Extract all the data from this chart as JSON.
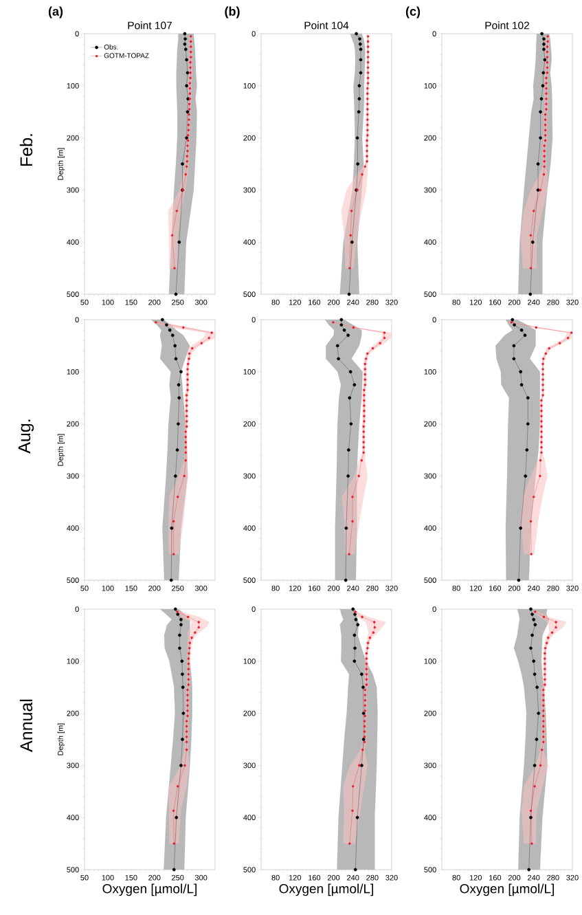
{
  "chart_data": [
    {
      "type": "line",
      "orientation": "horizontal",
      "title": "Point 107",
      "ylabel": "Depth [m]",
      "annotations": [
        "(a)",
        "Feb."
      ],
      "legend": "top left",
      "marker": "circle",
      "line_style": "solid",
      "xlim": [
        50,
        330
      ],
      "xticks": [
        50,
        100,
        150,
        200,
        250,
        300
      ],
      "ylim": [
        500,
        0
      ],
      "yticks": [
        0,
        100,
        200,
        300,
        400,
        500
      ],
      "series": [
        {
          "name": "Obs.",
          "color": "#000000",
          "x": [
            0,
            10,
            20,
            30,
            50,
            75,
            100,
            125,
            150,
            200,
            250,
            300,
            400,
            500
          ],
          "values": [
            265,
            266,
            265,
            267,
            269,
            271,
            269,
            272,
            271,
            269,
            260,
            260,
            253,
            246
          ],
          "lower": [
            251,
            251,
            250,
            249,
            248,
            247,
            247,
            248,
            249,
            249,
            246,
            242,
            236,
            231
          ],
          "upper": [
            284,
            285,
            286,
            287,
            288,
            289,
            291,
            288,
            291,
            290,
            287,
            284,
            268,
            264
          ]
        },
        {
          "name": "GOTM-TOPAZ",
          "color": "#e8202a",
          "x": [
            5,
            15,
            25,
            35,
            45,
            55,
            65,
            75,
            85,
            95,
            105,
            115,
            125,
            135,
            145,
            155,
            165,
            175,
            185,
            195,
            205,
            215,
            225,
            235,
            245,
            255,
            270,
            300,
            340,
            387,
            450
          ],
          "values": [
            278,
            278,
            278,
            278,
            278,
            277,
            277,
            277,
            277,
            276,
            276,
            276,
            276,
            275,
            275,
            274,
            274,
            273,
            273,
            272,
            272,
            271,
            271,
            270,
            270,
            269,
            267,
            261,
            248,
            238,
            243
          ],
          "lower": [
            275,
            275,
            275,
            275,
            275,
            274,
            274,
            274,
            274,
            273,
            273,
            273,
            273,
            272,
            272,
            271,
            271,
            270,
            270,
            269,
            269,
            268,
            268,
            267,
            267,
            266,
            262,
            254,
            230,
            231,
            232
          ],
          "upper": [
            281,
            281,
            281,
            281,
            281,
            280,
            280,
            280,
            280,
            279,
            279,
            279,
            279,
            278,
            278,
            277,
            277,
            276,
            276,
            275,
            275,
            274,
            274,
            273,
            273,
            272,
            271,
            266,
            257,
            250,
            249
          ]
        }
      ]
    },
    {
      "type": "line",
      "orientation": "horizontal",
      "title": "Point 104",
      "annotations": [
        "(b)"
      ],
      "marker": "circle",
      "line_style": "solid",
      "xlim": [
        50,
        320
      ],
      "xticks": [
        80,
        120,
        160,
        200,
        240,
        280,
        320
      ],
      "ylim": [
        500,
        0
      ],
      "yticks": [
        0,
        100,
        200,
        300,
        400,
        500
      ],
      "series": [
        {
          "color": "#000000",
          "x": [
            0,
            10,
            20,
            30,
            50,
            75,
            100,
            125,
            150,
            200,
            250,
            300,
            400,
            500
          ],
          "values": [
            247,
            254,
            255,
            256,
            256,
            256,
            253,
            253,
            252,
            249,
            250,
            247,
            238,
            232
          ],
          "lower": [
            234,
            238,
            242,
            244,
            245,
            244,
            241,
            242,
            243,
            244,
            242,
            239,
            220,
            213
          ],
          "upper": [
            258,
            262,
            264,
            265,
            265,
            264,
            263,
            263,
            262,
            259,
            262,
            258,
            249,
            253
          ]
        },
        {
          "color": "#e8202a",
          "x": [
            5,
            15,
            25,
            35,
            45,
            55,
            65,
            75,
            85,
            95,
            105,
            115,
            125,
            135,
            145,
            155,
            165,
            175,
            185,
            195,
            205,
            215,
            225,
            235,
            245,
            255,
            270,
            300,
            340,
            387,
            450
          ],
          "values": [
            271,
            271,
            271,
            271,
            271,
            271,
            271,
            271,
            271,
            271,
            270,
            270,
            270,
            270,
            270,
            270,
            270,
            270,
            270,
            270,
            269,
            269,
            269,
            269,
            269,
            265,
            259,
            249,
            237,
            235,
            233
          ],
          "lower": [
            269,
            269,
            269,
            269,
            269,
            269,
            269,
            269,
            269,
            269,
            268,
            268,
            268,
            268,
            268,
            268,
            268,
            268,
            268,
            268,
            267,
            267,
            267,
            267,
            267,
            262,
            248,
            227,
            216,
            222,
            225
          ],
          "upper": [
            273,
            273,
            273,
            273,
            273,
            273,
            273,
            273,
            273,
            273,
            272,
            272,
            272,
            272,
            272,
            272,
            272,
            272,
            272,
            272,
            271,
            271,
            271,
            271,
            271,
            270,
            270,
            267,
            258,
            248,
            241
          ]
        }
      ]
    },
    {
      "type": "line",
      "orientation": "horizontal",
      "title": "Point 102",
      "annotations": [
        "(c)"
      ],
      "marker": "circle",
      "line_style": "solid",
      "xlim": [
        50,
        320
      ],
      "xticks": [
        80,
        120,
        160,
        200,
        240,
        280,
        320
      ],
      "ylim": [
        500,
        0
      ],
      "yticks": [
        0,
        100,
        200,
        300,
        400,
        500
      ],
      "series": [
        {
          "color": "#000000",
          "x": [
            0,
            10,
            20,
            30,
            50,
            75,
            100,
            125,
            150,
            200,
            250,
            300,
            400,
            500
          ],
          "values": [
            257,
            261,
            261,
            261,
            263,
            260,
            259,
            256,
            254,
            254,
            249,
            249,
            238,
            233
          ],
          "lower": [
            246,
            246,
            245,
            245,
            244,
            242,
            239,
            240,
            235,
            230,
            225,
            220,
            211,
            208
          ],
          "upper": [
            272,
            274,
            275,
            276,
            277,
            274,
            277,
            278,
            278,
            279,
            275,
            268,
            258,
            258
          ]
        },
        {
          "color": "#e8202a",
          "x": [
            5,
            15,
            25,
            35,
            45,
            55,
            65,
            75,
            85,
            95,
            105,
            115,
            125,
            135,
            145,
            155,
            165,
            175,
            185,
            195,
            205,
            215,
            225,
            235,
            245,
            255,
            270,
            300,
            340,
            387,
            450
          ],
          "values": [
            269,
            269,
            268,
            268,
            268,
            268,
            268,
            268,
            266,
            266,
            266,
            266,
            266,
            266,
            266,
            264,
            264,
            264,
            264,
            264,
            264,
            262,
            262,
            262,
            262,
            262,
            261,
            254,
            240,
            234,
            234
          ],
          "lower": [
            266,
            266,
            265,
            265,
            265,
            265,
            265,
            265,
            263,
            263,
            263,
            263,
            263,
            263,
            263,
            261,
            261,
            261,
            261,
            261,
            261,
            259,
            259,
            259,
            259,
            259,
            252,
            234,
            220,
            213,
            218
          ],
          "upper": [
            272,
            272,
            271,
            271,
            271,
            271,
            271,
            271,
            269,
            269,
            269,
            269,
            269,
            269,
            269,
            267,
            267,
            267,
            267,
            267,
            267,
            265,
            265,
            265,
            265,
            265,
            268,
            268,
            258,
            246,
            246
          ]
        }
      ]
    },
    {
      "type": "line",
      "orientation": "horizontal",
      "annotations": [
        "Aug."
      ],
      "ylabel": "Depth [m]",
      "marker": "circle",
      "line_style": "solid",
      "xlim": [
        50,
        330
      ],
      "xticks": [
        50,
        100,
        150,
        200,
        250,
        300
      ],
      "ylim": [
        500,
        0
      ],
      "yticks": [
        0,
        100,
        200,
        300,
        400,
        500
      ],
      "series": [
        {
          "color": "#000000",
          "x": [
            0,
            10,
            20,
            30,
            50,
            75,
            100,
            125,
            150,
            200,
            250,
            300,
            400,
            500
          ],
          "values": [
            217,
            226,
            233,
            239,
            244,
            246,
            257,
            252,
            253,
            251,
            249,
            245,
            237,
            236
          ],
          "lower": [
            193,
            205,
            215,
            212,
            216,
            212,
            235,
            232,
            235,
            230,
            228,
            225,
            217,
            221
          ],
          "upper": [
            220,
            235,
            247,
            262,
            276,
            266,
            257,
            260,
            262,
            267,
            270,
            271,
            257,
            252
          ]
        },
        {
          "color": "#e8202a",
          "x": [
            5,
            15,
            25,
            35,
            45,
            55,
            65,
            75,
            85,
            95,
            105,
            115,
            125,
            135,
            145,
            155,
            165,
            175,
            185,
            195,
            205,
            215,
            225,
            235,
            245,
            255,
            270,
            300,
            340,
            387,
            450
          ],
          "values": [
            203,
            262,
            323,
            317,
            301,
            281,
            275,
            274,
            272,
            271,
            271,
            271,
            271,
            271,
            269,
            269,
            269,
            269,
            269,
            269,
            269,
            267,
            267,
            267,
            267,
            267,
            267,
            264,
            250,
            241,
            241
          ],
          "lower": [
            194,
            237,
            310,
            305,
            288,
            272,
            270,
            271,
            269,
            268,
            268,
            268,
            268,
            268,
            266,
            266,
            266,
            266,
            266,
            266,
            266,
            264,
            264,
            264,
            264,
            264,
            264,
            252,
            232,
            230,
            231
          ],
          "upper": [
            212,
            276,
            330,
            330,
            305,
            290,
            280,
            277,
            275,
            274,
            274,
            274,
            274,
            274,
            272,
            272,
            272,
            272,
            272,
            272,
            272,
            270,
            270,
            270,
            270,
            270,
            270,
            272,
            267,
            262,
            252
          ]
        }
      ]
    },
    {
      "type": "line",
      "orientation": "horizontal",
      "marker": "circle",
      "line_style": "solid",
      "xlim": [
        50,
        320
      ],
      "xticks": [
        80,
        120,
        160,
        200,
        240,
        280,
        320
      ],
      "ylim": [
        500,
        0
      ],
      "yticks": [
        0,
        100,
        200,
        300,
        400,
        500
      ],
      "series": [
        {
          "color": "#000000",
          "x": [
            0,
            10,
            20,
            30,
            50,
            75,
            100,
            125,
            150,
            200,
            250,
            300,
            400,
            500
          ],
          "values": [
            216,
            216,
            222,
            230,
            208,
            210,
            235,
            243,
            233,
            236,
            231,
            230,
            226,
            225
          ],
          "lower": [
            182,
            190,
            201,
            200,
            184,
            184,
            208,
            215,
            211,
            208,
            207,
            206,
            203,
            203
          ],
          "upper": [
            222,
            240,
            258,
            258,
            253,
            237,
            260,
            259,
            258,
            253,
            250,
            248,
            248,
            246
          ]
        },
        {
          "color": "#e8202a",
          "x": [
            5,
            15,
            25,
            35,
            45,
            55,
            65,
            75,
            85,
            95,
            105,
            115,
            125,
            135,
            145,
            155,
            165,
            175,
            185,
            195,
            205,
            215,
            225,
            235,
            245,
            255,
            270,
            300,
            340,
            387,
            450
          ],
          "values": [
            199,
            241,
            305,
            305,
            296,
            281,
            270,
            267,
            265,
            265,
            265,
            265,
            265,
            263,
            263,
            263,
            263,
            263,
            263,
            263,
            262,
            262,
            262,
            262,
            262,
            262,
            258,
            252,
            239,
            239,
            232
          ],
          "lower": [
            196,
            239,
            300,
            300,
            288,
            275,
            267,
            264,
            262,
            262,
            262,
            262,
            262,
            260,
            260,
            260,
            260,
            260,
            260,
            260,
            259,
            259,
            259,
            259,
            259,
            259,
            253,
            243,
            217,
            222,
            224
          ],
          "upper": [
            203,
            248,
            319,
            319,
            305,
            287,
            274,
            270,
            268,
            268,
            268,
            268,
            268,
            266,
            266,
            266,
            266,
            266,
            266,
            266,
            265,
            265,
            265,
            265,
            265,
            265,
            265,
            270,
            262,
            253,
            243
          ]
        }
      ]
    },
    {
      "type": "line",
      "orientation": "horizontal",
      "marker": "circle",
      "line_style": "solid",
      "xlim": [
        50,
        320
      ],
      "xticks": [
        80,
        120,
        160,
        200,
        240,
        280,
        320
      ],
      "ylim": [
        500,
        0
      ],
      "yticks": [
        0,
        100,
        200,
        300,
        400,
        500
      ],
      "series": [
        {
          "color": "#000000",
          "x": [
            0,
            10,
            20,
            30,
            50,
            75,
            100,
            125,
            150,
            200,
            250,
            300,
            400,
            500
          ],
          "values": [
            196,
            200,
            215,
            222,
            199,
            199,
            213,
            215,
            228,
            228,
            226,
            223,
            213,
            209
          ],
          "lower": [
            182,
            188,
            196,
            180,
            161,
            163,
            172,
            173,
            189,
            187,
            186,
            185,
            182,
            183
          ],
          "upper": [
            206,
            226,
            244,
            244,
            244,
            232,
            253,
            253,
            253,
            253,
            250,
            244,
            234,
            230
          ]
        },
        {
          "color": "#e8202a",
          "x": [
            5,
            15,
            25,
            35,
            45,
            55,
            65,
            75,
            85,
            95,
            105,
            115,
            125,
            135,
            145,
            155,
            165,
            175,
            185,
            195,
            205,
            215,
            225,
            235,
            245,
            255,
            270,
            300,
            340,
            387,
            450
          ],
          "values": [
            194,
            245,
            318,
            311,
            294,
            272,
            265,
            260,
            259,
            259,
            259,
            259,
            259,
            259,
            259,
            256,
            256,
            256,
            256,
            256,
            256,
            256,
            256,
            256,
            256,
            256,
            254,
            253,
            240,
            234,
            235
          ],
          "lower": [
            191,
            242,
            308,
            305,
            285,
            266,
            262,
            258,
            257,
            257,
            257,
            257,
            257,
            257,
            257,
            254,
            254,
            254,
            254,
            254,
            254,
            254,
            254,
            254,
            254,
            254,
            249,
            234,
            218,
            213,
            220
          ],
          "upper": [
            197,
            253,
            320,
            319,
            300,
            277,
            268,
            263,
            261,
            261,
            261,
            261,
            261,
            261,
            261,
            258,
            258,
            258,
            258,
            258,
            258,
            258,
            258,
            258,
            258,
            258,
            263,
            268,
            258,
            249,
            241
          ]
        }
      ]
    },
    {
      "type": "line",
      "orientation": "horizontal",
      "annotations": [
        "Annual"
      ],
      "ylabel": "Depth [m]",
      "xlabel": "Oxygen [µmol/L]",
      "marker": "circle",
      "line_style": "solid",
      "xlim": [
        50,
        330
      ],
      "xticks": [
        50,
        100,
        150,
        200,
        250,
        300
      ],
      "ylim": [
        500,
        0
      ],
      "yticks": [
        0,
        100,
        200,
        300,
        400,
        500
      ],
      "series": [
        {
          "color": "#000000",
          "x": [
            0,
            10,
            20,
            30,
            50,
            75,
            100,
            125,
            150,
            200,
            250,
            300,
            400,
            500
          ],
          "values": [
            245,
            250,
            257,
            257,
            254,
            254,
            259,
            260,
            261,
            262,
            260,
            257,
            247,
            242
          ],
          "lower": [
            212,
            225,
            237,
            227,
            221,
            222,
            232,
            237,
            242,
            244,
            240,
            235,
            225,
            220
          ],
          "upper": [
            252,
            265,
            276,
            276,
            276,
            276,
            276,
            279,
            281,
            281,
            279,
            276,
            267,
            264
          ]
        },
        {
          "color": "#e8202a",
          "x": [
            5,
            15,
            25,
            35,
            45,
            55,
            65,
            75,
            85,
            95,
            105,
            115,
            125,
            135,
            145,
            155,
            165,
            175,
            185,
            195,
            205,
            215,
            225,
            235,
            245,
            255,
            270,
            300,
            340,
            387,
            450
          ],
          "values": [
            249,
            272,
            295,
            295,
            287,
            280,
            276,
            275,
            274,
            273,
            273,
            273,
            273,
            273,
            273,
            271,
            271,
            271,
            271,
            271,
            271,
            269,
            269,
            269,
            269,
            269,
            269,
            265,
            250,
            241,
            242
          ],
          "lower": [
            247,
            259,
            281,
            276,
            271,
            272,
            271,
            271,
            271,
            270,
            270,
            270,
            270,
            270,
            270,
            268,
            268,
            268,
            268,
            268,
            268,
            266,
            266,
            266,
            266,
            266,
            265,
            257,
            231,
            231,
            232
          ],
          "upper": [
            257,
            296,
            318,
            311,
            295,
            285,
            281,
            279,
            277,
            276,
            276,
            276,
            276,
            276,
            276,
            274,
            274,
            274,
            274,
            274,
            274,
            272,
            272,
            272,
            272,
            272,
            272,
            274,
            269,
            256,
            252
          ]
        }
      ]
    },
    {
      "type": "line",
      "orientation": "horizontal",
      "xlabel": "Oxygen [µmol/L]",
      "marker": "circle",
      "line_style": "solid",
      "xlim": [
        50,
        320
      ],
      "xticks": [
        80,
        120,
        160,
        200,
        240,
        280,
        320
      ],
      "ylim": [
        500,
        0
      ],
      "yticks": [
        0,
        100,
        200,
        300,
        400,
        500
      ],
      "series": [
        {
          "color": "#000000",
          "x": [
            0,
            10,
            20,
            30,
            50,
            75,
            100,
            125,
            150,
            200,
            250,
            300,
            400,
            500
          ],
          "values": [
            240,
            244,
            246,
            250,
            243,
            244,
            243,
            258,
            261,
            262,
            262,
            258,
            249,
            245
          ],
          "lower": [
            213,
            216,
            220,
            213,
            216,
            216,
            215,
            232,
            230,
            227,
            222,
            218,
            210,
            207
          ],
          "upper": [
            244,
            247,
            250,
            252,
            250,
            258,
            267,
            281,
            289,
            291,
            290,
            289,
            285,
            285
          ]
        },
        {
          "color": "#e8202a",
          "x": [
            5,
            15,
            25,
            35,
            45,
            55,
            65,
            75,
            85,
            95,
            105,
            115,
            125,
            135,
            145,
            155,
            165,
            175,
            185,
            195,
            205,
            215,
            225,
            235,
            245,
            255,
            270,
            300,
            340,
            387,
            450
          ],
          "values": [
            245,
            259,
            284,
            285,
            282,
            275,
            271,
            270,
            268,
            268,
            268,
            268,
            268,
            268,
            268,
            265,
            265,
            265,
            265,
            265,
            265,
            264,
            264,
            264,
            264,
            264,
            260,
            253,
            240,
            239,
            233
          ],
          "lower": [
            239,
            248,
            267,
            270,
            272,
            270,
            268,
            267,
            265,
            265,
            265,
            265,
            265,
            265,
            265,
            262,
            262,
            262,
            262,
            262,
            262,
            261,
            261,
            261,
            261,
            261,
            256,
            234,
            220,
            222,
            220
          ],
          "upper": [
            248,
            272,
            308,
            300,
            291,
            280,
            274,
            273,
            271,
            271,
            271,
            271,
            271,
            271,
            271,
            268,
            268,
            268,
            268,
            268,
            268,
            267,
            267,
            267,
            267,
            267,
            264,
            270,
            263,
            255,
            244
          ]
        }
      ]
    },
    {
      "type": "line",
      "orientation": "horizontal",
      "xlabel": "Oxygen [µmol/L]",
      "marker": "circle",
      "line_style": "solid",
      "xlim": [
        50,
        320
      ],
      "xticks": [
        80,
        120,
        160,
        200,
        240,
        280,
        320
      ],
      "ylim": [
        500,
        0
      ],
      "yticks": [
        0,
        100,
        200,
        300,
        400,
        500
      ],
      "series": [
        {
          "color": "#000000",
          "x": [
            0,
            10,
            20,
            30,
            50,
            75,
            100,
            125,
            150,
            200,
            250,
            300,
            400,
            500
          ],
          "values": [
            234,
            237,
            240,
            243,
            237,
            234,
            240,
            242,
            247,
            250,
            246,
            242,
            234,
            230
          ],
          "lower": [
            206,
            209,
            211,
            209,
            206,
            199,
            208,
            215,
            220,
            225,
            223,
            220,
            211,
            208
          ],
          "upper": [
            268,
            266,
            272,
            268,
            258,
            257,
            256,
            258,
            261,
            265,
            267,
            268,
            258,
            253
          ]
        },
        {
          "color": "#e8202a",
          "x": [
            5,
            15,
            25,
            35,
            45,
            55,
            65,
            75,
            85,
            95,
            105,
            115,
            125,
            135,
            145,
            155,
            165,
            175,
            185,
            195,
            205,
            215,
            225,
            235,
            245,
            255,
            270,
            300,
            340,
            387,
            450
          ],
          "values": [
            243,
            261,
            286,
            286,
            278,
            270,
            267,
            264,
            263,
            263,
            263,
            263,
            263,
            263,
            263,
            260,
            260,
            260,
            260,
            260,
            260,
            260,
            260,
            260,
            260,
            260,
            257,
            254,
            242,
            234,
            236
          ],
          "lower": [
            240,
            253,
            268,
            272,
            272,
            265,
            263,
            261,
            260,
            260,
            260,
            260,
            260,
            260,
            260,
            257,
            257,
            257,
            257,
            257,
            257,
            257,
            257,
            257,
            257,
            257,
            254,
            244,
            220,
            215,
            220
          ],
          "upper": [
            249,
            270,
            308,
            300,
            286,
            275,
            271,
            267,
            266,
            266,
            266,
            266,
            266,
            266,
            266,
            263,
            263,
            263,
            263,
            263,
            263,
            263,
            263,
            263,
            263,
            263,
            260,
            270,
            258,
            246,
            244
          ]
        }
      ]
    }
  ]
}
